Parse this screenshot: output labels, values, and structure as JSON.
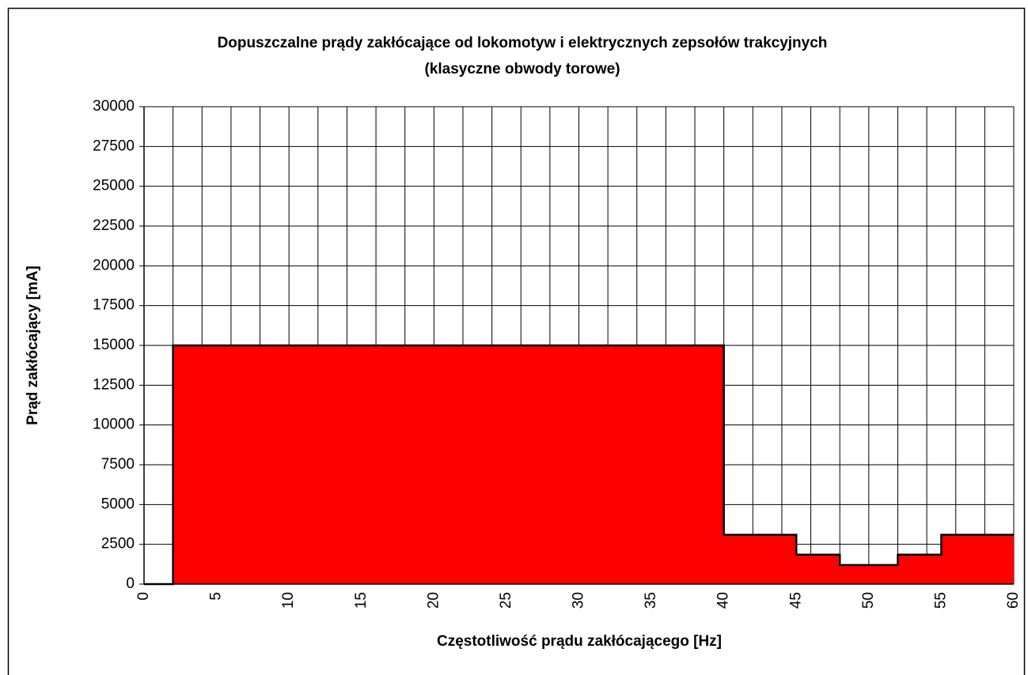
{
  "chart_data": {
    "type": "area",
    "title": "Dopuszczalne prądy zakłócające od lokomotyw i elektrycznych zepsołów trakcyjnych",
    "subtitle": "(klasyczne obwody torowe)",
    "x_label": "Częstotliwość prądu zakłócającego [Hz]",
    "y_label": "Prąd zakłócający [mA]",
    "x": [
      0,
      2,
      2,
      40,
      40,
      45,
      45,
      48,
      48,
      52,
      52,
      55,
      55,
      60
    ],
    "values": [
      0,
      0,
      15000,
      15000,
      3100,
      3100,
      1850,
      1850,
      1200,
      1200,
      1850,
      1850,
      3100,
      3100
    ],
    "color": "#ff0000",
    "xlim": [
      0,
      60
    ],
    "xticks": [
      0,
      5,
      10,
      15,
      20,
      25,
      30,
      35,
      40,
      45,
      50,
      55,
      60
    ],
    "xgrid": [
      0,
      2,
      4,
      6,
      8,
      10,
      12,
      14,
      16,
      18,
      20,
      22,
      24,
      26,
      28,
      30,
      32,
      34,
      36,
      38,
      40,
      42,
      44,
      46,
      48,
      50,
      52,
      54,
      56,
      58,
      60
    ],
    "ylim": [
      0,
      30000
    ],
    "yticks": [
      0,
      2500,
      5000,
      7500,
      10000,
      12500,
      15000,
      17500,
      20000,
      22500,
      25000,
      27500,
      30000
    ],
    "grid": true
  }
}
